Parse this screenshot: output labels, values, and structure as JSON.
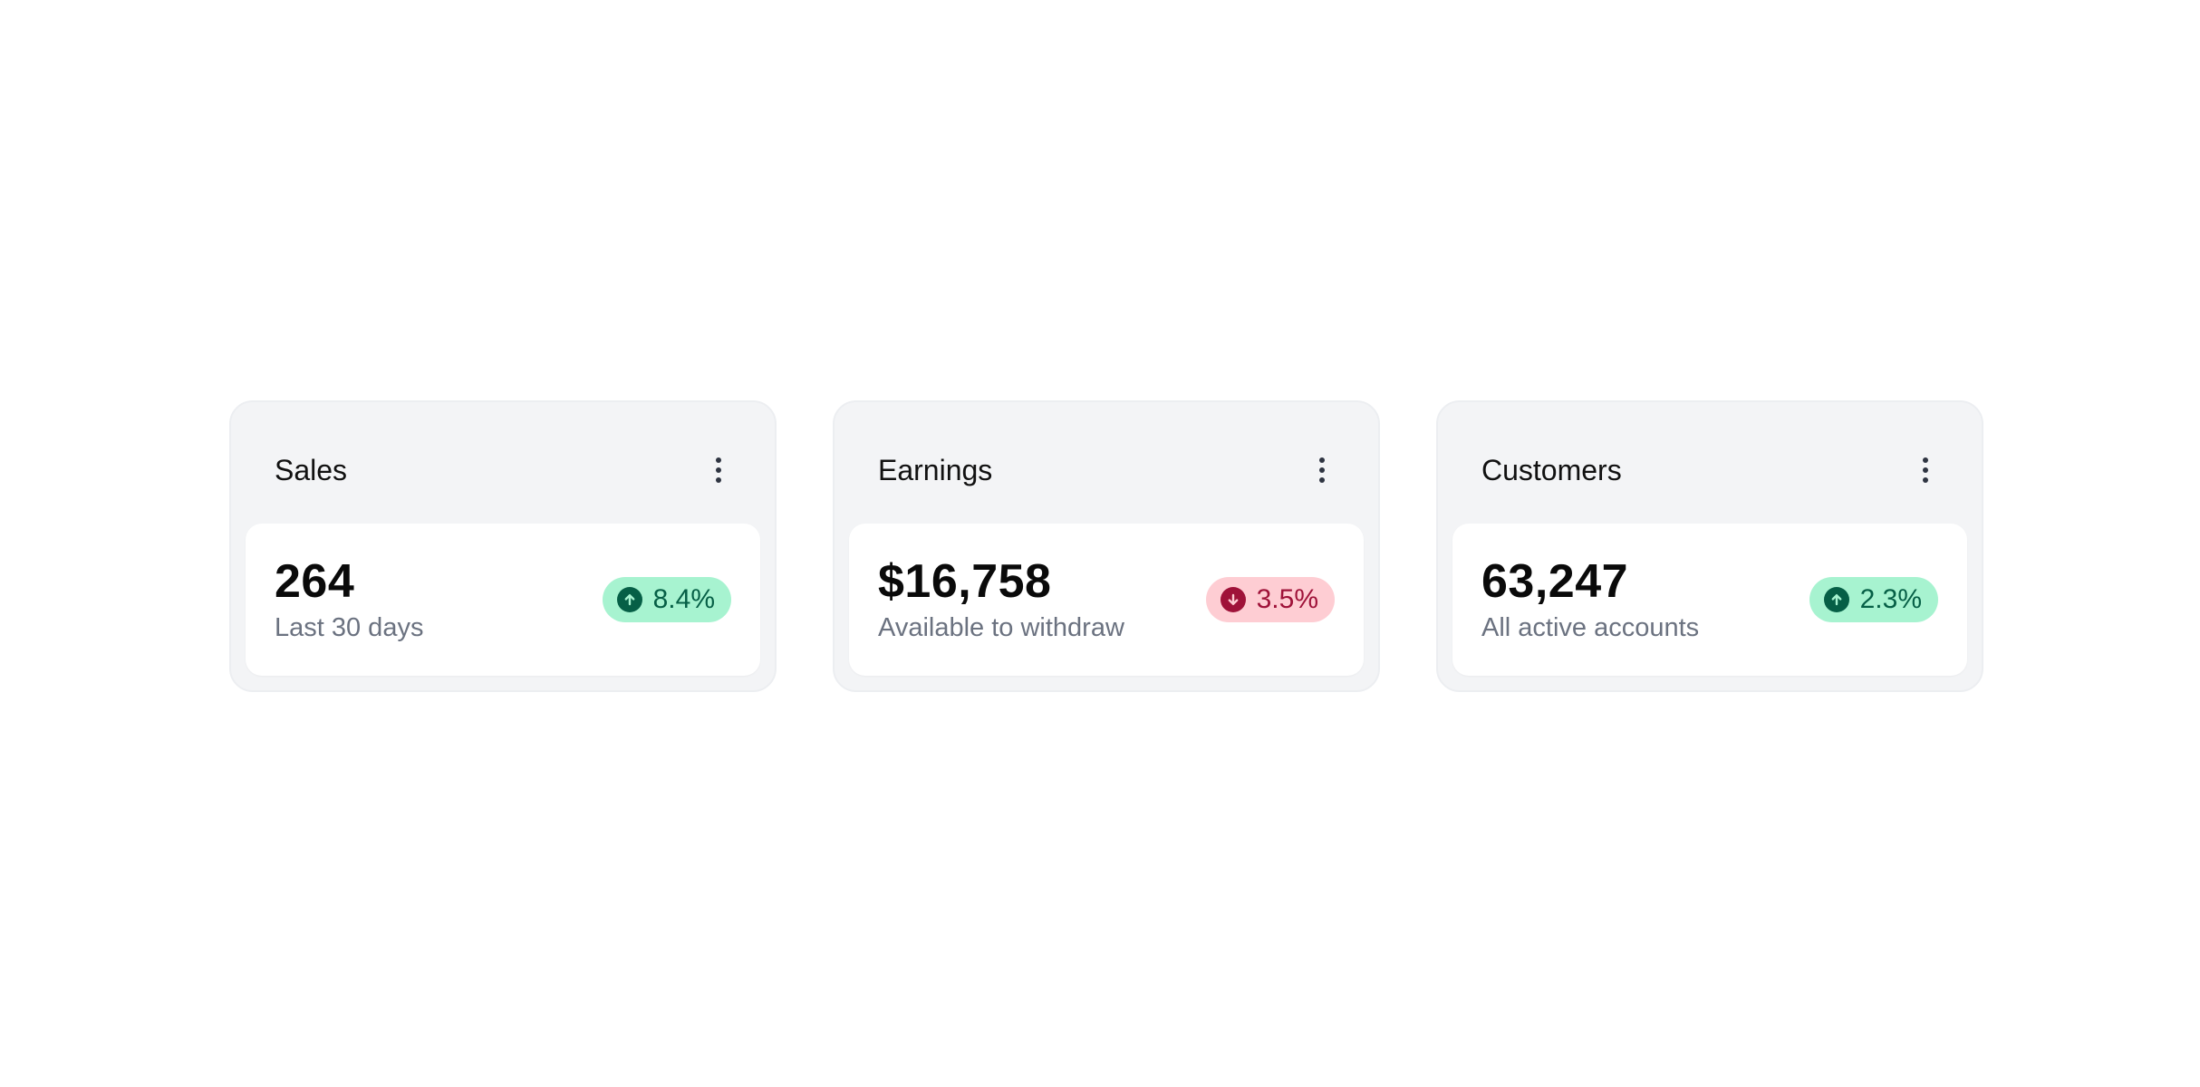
{
  "cards": [
    {
      "title": "Sales",
      "value": "264",
      "caption": "Last 30 days",
      "change": "8.4%",
      "trend": "up",
      "trend_icon": "arrow-up-circle-icon",
      "menu_icon": "more-vertical-icon"
    },
    {
      "title": "Earnings",
      "value": "$16,758",
      "caption": "Available to withdraw",
      "change": "3.5%",
      "trend": "down",
      "trend_icon": "arrow-down-circle-icon",
      "menu_icon": "more-vertical-icon"
    },
    {
      "title": "Customers",
      "value": "63,247",
      "caption": "All active accounts",
      "change": "2.3%",
      "trend": "up",
      "trend_icon": "arrow-up-circle-icon",
      "menu_icon": "more-vertical-icon"
    }
  ],
  "colors": {
    "card_bg": "#f3f4f6",
    "up_badge_bg": "#a7f3d0",
    "up_badge_text": "#065f46",
    "down_badge_bg": "#fecdd3",
    "down_badge_text": "#9f1239",
    "caption_text": "#6b7280"
  }
}
